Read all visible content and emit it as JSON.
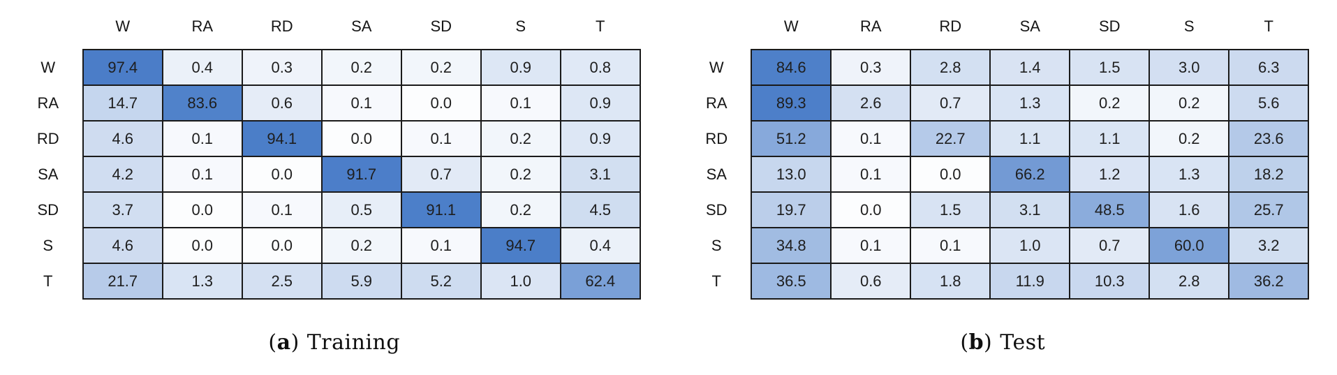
{
  "page": {
    "background": "#ffffff"
  },
  "color_scale": {
    "low": "#ffffff",
    "high": "#4a7dc8",
    "grid_color": "#1a1a1a",
    "cell_text_color": "#1e1e1e",
    "anchors": [
      [
        0,
        0.015
      ],
      [
        0.2,
        0.07
      ],
      [
        0.5,
        0.13
      ],
      [
        1,
        0.2
      ],
      [
        2,
        0.23
      ],
      [
        4,
        0.26
      ],
      [
        7,
        0.29
      ],
      [
        14,
        0.31
      ],
      [
        22,
        0.4
      ],
      [
        36,
        0.53
      ],
      [
        51,
        0.66
      ],
      [
        62,
        0.73
      ],
      [
        85,
        0.98
      ],
      [
        100,
        1.0
      ]
    ]
  },
  "chart_data": [
    {
      "type": "heatmap",
      "caption": {
        "marker": "a",
        "label": "Training"
      },
      "columns": [
        "W",
        "RA",
        "RD",
        "SA",
        "SD",
        "S",
        "T"
      ],
      "rows": [
        "W",
        "RA",
        "RD",
        "SA",
        "SD",
        "S",
        "T"
      ],
      "value_range": [
        0,
        100
      ],
      "legend": "none",
      "values": [
        [
          97.4,
          0.4,
          0.3,
          0.2,
          0.2,
          0.9,
          0.8
        ],
        [
          14.7,
          83.6,
          0.6,
          0.1,
          0.0,
          0.1,
          0.9
        ],
        [
          4.6,
          0.1,
          94.1,
          0.0,
          0.1,
          0.2,
          0.9
        ],
        [
          4.2,
          0.1,
          0.0,
          91.7,
          0.7,
          0.2,
          3.1
        ],
        [
          3.7,
          0.0,
          0.1,
          0.5,
          91.1,
          0.2,
          4.5
        ],
        [
          4.6,
          0.0,
          0.0,
          0.2,
          0.1,
          94.7,
          0.4
        ],
        [
          21.7,
          1.3,
          2.5,
          5.9,
          5.2,
          1.0,
          62.4
        ]
      ]
    },
    {
      "type": "heatmap",
      "caption": {
        "marker": "b",
        "label": "Test"
      },
      "columns": [
        "W",
        "RA",
        "RD",
        "SA",
        "SD",
        "S",
        "T"
      ],
      "rows": [
        "W",
        "RA",
        "RD",
        "SA",
        "SD",
        "S",
        "T"
      ],
      "value_range": [
        0,
        100
      ],
      "legend": "none",
      "values": [
        [
          84.6,
          0.3,
          2.8,
          1.4,
          1.5,
          3.0,
          6.3
        ],
        [
          89.3,
          2.6,
          0.7,
          1.3,
          0.2,
          0.2,
          5.6
        ],
        [
          51.2,
          0.1,
          22.7,
          1.1,
          1.1,
          0.2,
          23.6
        ],
        [
          13.0,
          0.1,
          0.0,
          66.2,
          1.2,
          1.3,
          18.2
        ],
        [
          19.7,
          0.0,
          1.5,
          3.1,
          48.5,
          1.6,
          25.7
        ],
        [
          34.8,
          0.1,
          0.1,
          1.0,
          0.7,
          60.0,
          3.2
        ],
        [
          36.5,
          0.6,
          1.8,
          11.9,
          10.3,
          2.8,
          36.2
        ]
      ]
    }
  ]
}
